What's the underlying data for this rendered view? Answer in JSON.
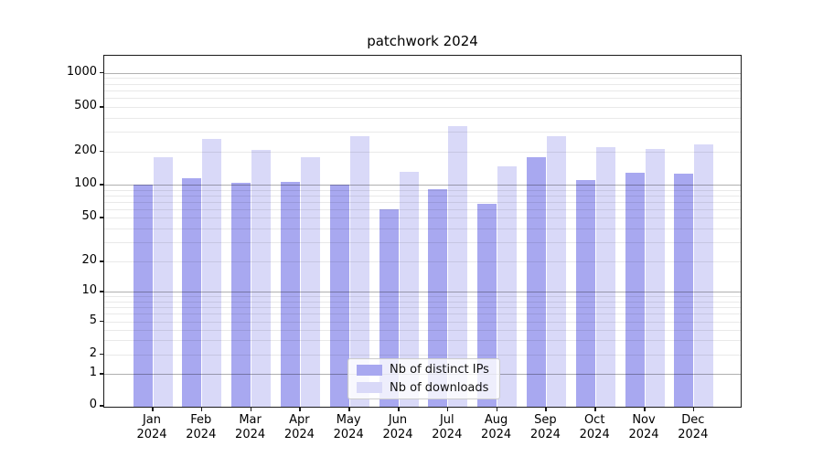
{
  "title": "patchwork 2024",
  "chart_data": {
    "type": "bar",
    "title": "patchwork 2024",
    "categories": [
      "Jan",
      "Feb",
      "Mar",
      "Apr",
      "May",
      "Jun",
      "Jul",
      "Aug",
      "Sep",
      "Oct",
      "Nov",
      "Dec"
    ],
    "x_year_line": "2024",
    "series": [
      {
        "name": "Nb of distinct IPs",
        "color": "#a8a8f0",
        "values": [
          97,
          110,
          100,
          103,
          96,
          57,
          87,
          64,
          172,
          107,
          123,
          121
        ]
      },
      {
        "name": "Nb of downloads",
        "color": "#d9d9f8",
        "values": [
          172,
          250,
          200,
          172,
          262,
          126,
          325,
          141,
          262,
          211,
          202,
          222
        ]
      }
    ],
    "yscale": "symlog",
    "yticks": [
      1000,
      500,
      200,
      100,
      50,
      20,
      10,
      5,
      2,
      1,
      0
    ],
    "ylim": [
      0,
      1400
    ],
    "grid": {
      "horizontal": true,
      "major_color": "#b0b0b0",
      "minor_color": "#e9e9e9"
    },
    "legend": {
      "position": "lower-center"
    }
  }
}
